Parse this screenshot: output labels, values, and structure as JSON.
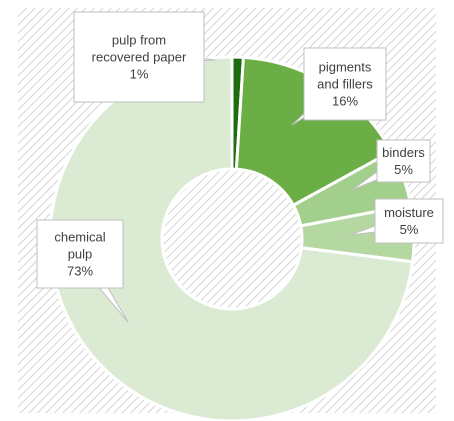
{
  "chart_data": {
    "type": "pie",
    "variant": "doughnut",
    "title": "",
    "legend": "none",
    "slices": [
      {
        "label": "pulp from recovered paper",
        "label_lines": [
          "pulp from",
          "recovered paper"
        ],
        "value": 1,
        "value_label": "1%",
        "color": "#1f6b10"
      },
      {
        "label": "pigments and fillers",
        "label_lines": [
          "pigments",
          "and fillers"
        ],
        "value": 16,
        "value_label": "16%",
        "color": "#6aae45"
      },
      {
        "label": "binders",
        "label_lines": [
          "binders"
        ],
        "value": 5,
        "value_label": "5%",
        "color": "#a3cf8c"
      },
      {
        "label": "moisture",
        "label_lines": [
          "moisture"
        ],
        "value": 5,
        "value_label": "5%",
        "color": "#b5d8a3"
      },
      {
        "label": "chemical pulp",
        "label_lines": [
          "chemical",
          "pulp"
        ],
        "value": 73,
        "value_label": "73%",
        "color": "#dbead3"
      }
    ]
  }
}
